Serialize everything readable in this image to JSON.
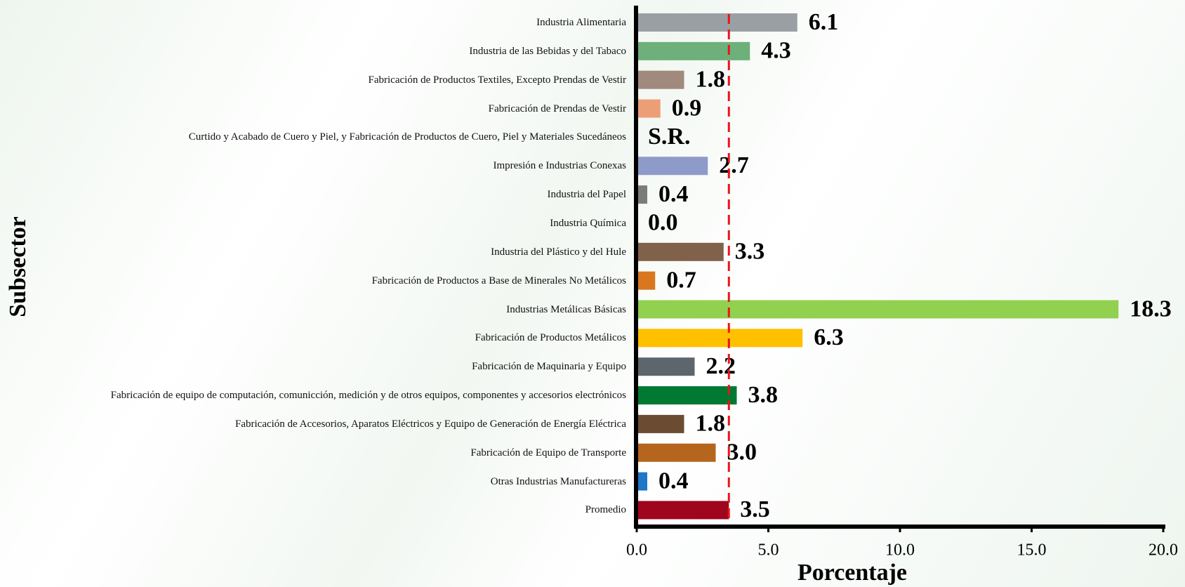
{
  "chart_data": {
    "type": "barh",
    "categories": [
      "Industria Alimentaria",
      "Industria de las Bebidas y del Tabaco",
      "Fabricación de Productos Textiles, Excepto Prendas de Vestir",
      "Fabricación de Prendas de Vestir",
      "Curtido y Acabado de Cuero y Piel, y Fabricación de Productos de Cuero, Piel y Materiales Sucedáneos",
      "Impresión e Industrias Conexas",
      "Industria del Papel",
      "Industria Química",
      "Industria del Plástico y del Hule",
      "Fabricación de Productos a Base de Minerales No Metálicos",
      "Industrias Metálicas Básicas",
      "Fabricación de Productos Metálicos",
      "Fabricación de Maquinaria y Equipo",
      "Fabricación de equipo de computación, comunicción, medición y de otros equipos, componentes y accesorios electrónicos",
      "Fabricación de Accesorios, Aparatos Eléctricos y Equipo de Generación de Energía Eléctrica",
      "Fabricación de Equipo de Transporte",
      "Otras Industrias Manufactureras",
      "Promedio"
    ],
    "values": [
      6.1,
      4.3,
      1.8,
      0.9,
      null,
      2.7,
      0.4,
      0.0,
      3.3,
      0.7,
      18.3,
      6.3,
      2.2,
      3.8,
      1.8,
      3.0,
      0.4,
      3.5
    ],
    "value_labels": [
      "6.1",
      "4.3",
      "1.8",
      "0.9",
      "S.R.",
      "2.7",
      "0.4",
      "0.0",
      "3.3",
      "0.7",
      "18.3",
      "6.3",
      "2.2",
      "3.8",
      "1.8",
      "3.0",
      "0.4",
      "3.5"
    ],
    "colors": [
      "#9a9fa4",
      "#6db07a",
      "#a08a7d",
      "#ec9f77",
      "#cccccc",
      "#8e9ac7",
      "#7b7b7b",
      "#a0a0a0",
      "#80614a",
      "#d9771f",
      "#92d050",
      "#ffc000",
      "#5e666d",
      "#007a33",
      "#6b4c33",
      "#b5651d",
      "#1f77c8",
      "#a0051e"
    ],
    "xlim": [
      0,
      20
    ],
    "xticks": [
      {
        "value": 0,
        "label": "0.0"
      },
      {
        "value": 5,
        "label": "5.0"
      },
      {
        "value": 10,
        "label": "10.0"
      },
      {
        "value": 15,
        "label": "15.0"
      },
      {
        "value": 20,
        "label": "20.0"
      }
    ],
    "xlabel": "Porcentaje",
    "ylabel": "Subsector",
    "reference_line": {
      "color": "#e8151b"
    }
  }
}
